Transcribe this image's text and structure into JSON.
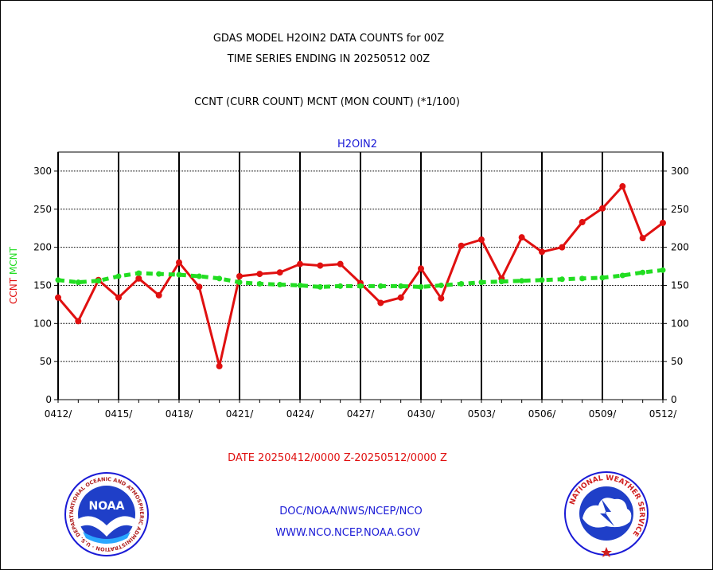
{
  "header": {
    "line1": "GDAS MODEL H2OIN2 DATA COUNTS for 00Z",
    "line2": "TIME SERIES ENDING IN 20250512 00Z",
    "line3": "CCNT (CURR COUNT) MCNT (MON COUNT) (*1/100)"
  },
  "footer": {
    "date_range": "DATE 20250412/0000 Z-20250512/0000 Z",
    "agency": "DOC/NOAA/NWS/NCEP/NCO",
    "url": "WWW.NCO.NCEP.NOAA.GOV",
    "noaa_logo_text": "NOAA",
    "noaa_seal_ring": "NATIONAL OCEANIC AND ATMOSPHERIC ADMINISTRATION · U.S. DEPARTMENT OF COMMERCE",
    "nws_ring": "NATIONAL WEATHER SERVICE"
  },
  "colors": {
    "ccnt": "#e01010",
    "mcnt": "#22dd22",
    "label_blue": "#1a1ad6"
  },
  "chart_data": {
    "type": "line",
    "title": "H2OIN2",
    "ylabel_parts": [
      "CCNT",
      "MCNT"
    ],
    "ylim": [
      0,
      325
    ],
    "yticks": [
      0,
      50,
      100,
      150,
      200,
      250,
      300
    ],
    "x": [
      "0412",
      "0413",
      "0414",
      "0415",
      "0416",
      "0417",
      "0418",
      "0419",
      "0420",
      "0421",
      "0422",
      "0423",
      "0424",
      "0425",
      "0426",
      "0427",
      "0428",
      "0429",
      "0430",
      "0501",
      "0502",
      "0503",
      "0504",
      "0505",
      "0506",
      "0507",
      "0508",
      "0509",
      "0510",
      "0511",
      "0512"
    ],
    "xtick_labels": [
      "0412/",
      "0415/",
      "0418/",
      "0421/",
      "0424/",
      "0427/",
      "0430/",
      "0503/",
      "0506/",
      "0509/",
      "0512/"
    ],
    "grid": true,
    "series": [
      {
        "name": "CCNT",
        "color": "#e01010",
        "style": "solid",
        "values": [
          134,
          103,
          157,
          134,
          159,
          137,
          180,
          148,
          44,
          162,
          165,
          167,
          178,
          176,
          178,
          153,
          127,
          134,
          172,
          133,
          202,
          210,
          159,
          213,
          194,
          200,
          233,
          251,
          280,
          212,
          232
        ]
      },
      {
        "name": "MCNT",
        "color": "#22dd22",
        "style": "dashed",
        "values": [
          157,
          154,
          156,
          162,
          166,
          165,
          164,
          162,
          159,
          154,
          152,
          151,
          150,
          148,
          149,
          149,
          149,
          149,
          148,
          150,
          152,
          154,
          155,
          156,
          157,
          158,
          159,
          160,
          163,
          167,
          170
        ]
      }
    ]
  }
}
